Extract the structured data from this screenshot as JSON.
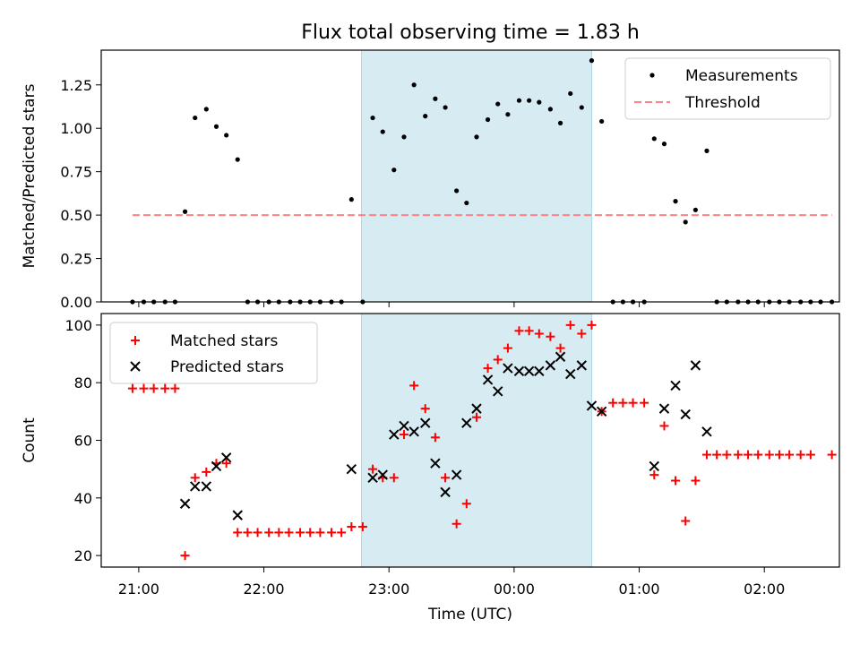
{
  "title": "Flux total observing time = 1.83 h",
  "xlabel": "Time (UTC)",
  "xticks": [
    "21:00",
    "22:00",
    "23:00",
    "00:00",
    "01:00",
    "02:00"
  ],
  "colors": {
    "highlight": "#add8e6",
    "measurement": "#000000",
    "threshold": "#ff8080",
    "matched": "#ff0000",
    "predicted": "#000000"
  },
  "chart_data": [
    {
      "type": "scatter",
      "title": "Flux total observing time = 1.83 h",
      "ylabel": "Matched/Predicted stars",
      "ylim": [
        0,
        1.45
      ],
      "yticks": [
        "0.00",
        "0.25",
        "0.50",
        "0.75",
        "1.00",
        "1.25"
      ],
      "x_unit": "hours after 21:00 UTC",
      "xlim": [
        -0.3,
        5.6
      ],
      "highlight_span": [
        1.78,
        3.62
      ],
      "legend": "top-right",
      "grid": false,
      "series": [
        {
          "name": "Measurements",
          "marker": "dot",
          "x": [
            -0.05,
            0.04,
            0.12,
            0.21,
            0.29,
            0.37,
            0.45,
            0.54,
            0.62,
            0.7,
            0.79,
            0.87,
            0.95,
            1.04,
            1.12,
            1.21,
            1.29,
            1.37,
            1.45,
            1.54,
            1.62,
            1.7,
            1.79,
            1.87,
            1.95,
            2.04,
            2.12,
            2.2,
            2.29,
            2.37,
            2.45,
            2.54,
            2.62,
            2.7,
            2.79,
            2.87,
            2.95,
            3.04,
            3.12,
            3.2,
            3.29,
            3.37,
            3.45,
            3.54,
            3.62,
            3.7,
            3.79,
            3.87,
            3.95,
            4.04,
            4.12,
            4.2,
            4.29,
            4.37,
            4.45,
            4.54,
            4.62,
            4.7,
            4.79,
            4.87,
            4.95,
            5.04,
            5.12,
            5.2,
            5.29,
            5.37,
            5.45,
            5.54
          ],
          "y": [
            0,
            0,
            0,
            0,
            0,
            0.52,
            1.06,
            1.11,
            1.01,
            0.96,
            0.82,
            0,
            0,
            0,
            0,
            0,
            0,
            0,
            0,
            0,
            0,
            0.59,
            0,
            1.06,
            0.98,
            0.76,
            0.95,
            1.25,
            1.07,
            1.17,
            1.12,
            0.64,
            0.57,
            0.95,
            1.05,
            1.14,
            1.08,
            1.16,
            1.16,
            1.15,
            1.11,
            1.03,
            1.2,
            1.12,
            1.39,
            1.04,
            0,
            0,
            0,
            0,
            0.94,
            0.91,
            0.58,
            0.46,
            0.53,
            0.87,
            0,
            0,
            0,
            0,
            0,
            0,
            0,
            0,
            0,
            0,
            0,
            0
          ]
        },
        {
          "name": "Threshold",
          "marker": "dashed-line",
          "x": [
            -0.05,
            5.54
          ],
          "y": [
            0.5,
            0.5
          ]
        }
      ]
    },
    {
      "type": "scatter",
      "xlabel": "Time (UTC)",
      "ylabel": "Count",
      "ylim": [
        16,
        104
      ],
      "yticks": [
        "20",
        "40",
        "60",
        "80",
        "100"
      ],
      "x_unit": "hours after 21:00 UTC",
      "xlim": [
        -0.3,
        5.6
      ],
      "highlight_span": [
        1.78,
        3.62
      ],
      "legend": "top-left",
      "grid": false,
      "series": [
        {
          "name": "Matched stars",
          "marker": "plus",
          "points": [
            [
              -0.05,
              78
            ],
            [
              0.04,
              78
            ],
            [
              0.12,
              78
            ],
            [
              0.21,
              78
            ],
            [
              0.29,
              78
            ],
            [
              0.37,
              20
            ],
            [
              0.45,
              47
            ],
            [
              0.54,
              49
            ],
            [
              0.62,
              52
            ],
            [
              0.7,
              52
            ],
            [
              0.79,
              28
            ],
            [
              0.87,
              28
            ],
            [
              0.95,
              28
            ],
            [
              1.04,
              28
            ],
            [
              1.12,
              28
            ],
            [
              1.2,
              28
            ],
            [
              1.29,
              28
            ],
            [
              1.37,
              28
            ],
            [
              1.45,
              28
            ],
            [
              1.54,
              28
            ],
            [
              1.62,
              28
            ],
            [
              1.7,
              30
            ],
            [
              1.79,
              30
            ],
            [
              1.87,
              50
            ],
            [
              1.95,
              47
            ],
            [
              2.04,
              47
            ],
            [
              2.12,
              62
            ],
            [
              2.2,
              79
            ],
            [
              2.29,
              71
            ],
            [
              2.37,
              61
            ],
            [
              2.45,
              47
            ],
            [
              2.54,
              31
            ],
            [
              2.62,
              38
            ],
            [
              2.7,
              68
            ],
            [
              2.79,
              85
            ],
            [
              2.87,
              88
            ],
            [
              2.95,
              92
            ],
            [
              3.04,
              98
            ],
            [
              3.12,
              98
            ],
            [
              3.2,
              97
            ],
            [
              3.29,
              96
            ],
            [
              3.37,
              92
            ],
            [
              3.45,
              100
            ],
            [
              3.54,
              97
            ],
            [
              3.62,
              100
            ],
            [
              3.7,
              70
            ],
            [
              3.79,
              73
            ],
            [
              3.87,
              73
            ],
            [
              3.95,
              73
            ],
            [
              4.04,
              73
            ],
            [
              4.12,
              48
            ],
            [
              4.2,
              65
            ],
            [
              4.29,
              46
            ],
            [
              4.37,
              32
            ],
            [
              4.45,
              46
            ],
            [
              4.54,
              55
            ],
            [
              4.62,
              55
            ],
            [
              4.7,
              55
            ],
            [
              4.79,
              55
            ],
            [
              4.87,
              55
            ],
            [
              4.95,
              55
            ],
            [
              5.04,
              55
            ],
            [
              5.12,
              55
            ],
            [
              5.2,
              55
            ],
            [
              5.29,
              55
            ],
            [
              5.37,
              55
            ],
            [
              5.54,
              55
            ]
          ]
        },
        {
          "name": "Predicted stars",
          "marker": "x",
          "points": [
            [
              0.37,
              38
            ],
            [
              0.45,
              44
            ],
            [
              0.54,
              44
            ],
            [
              0.62,
              51
            ],
            [
              0.7,
              54
            ],
            [
              0.79,
              34
            ],
            [
              1.7,
              50
            ],
            [
              1.87,
              47
            ],
            [
              1.95,
              48
            ],
            [
              2.04,
              62
            ],
            [
              2.12,
              65
            ],
            [
              2.2,
              63
            ],
            [
              2.29,
              66
            ],
            [
              2.37,
              52
            ],
            [
              2.45,
              42
            ],
            [
              2.54,
              48
            ],
            [
              2.62,
              66
            ],
            [
              2.7,
              71
            ],
            [
              2.79,
              81
            ],
            [
              2.87,
              77
            ],
            [
              2.95,
              85
            ],
            [
              3.04,
              84
            ],
            [
              3.12,
              84
            ],
            [
              3.2,
              84
            ],
            [
              3.29,
              86
            ],
            [
              3.37,
              89
            ],
            [
              3.45,
              83
            ],
            [
              3.54,
              86
            ],
            [
              3.62,
              72
            ],
            [
              3.7,
              70
            ],
            [
              4.12,
              51
            ],
            [
              4.2,
              71
            ],
            [
              4.29,
              79
            ],
            [
              4.37,
              69
            ],
            [
              4.45,
              86
            ],
            [
              4.54,
              63
            ]
          ]
        }
      ]
    }
  ]
}
